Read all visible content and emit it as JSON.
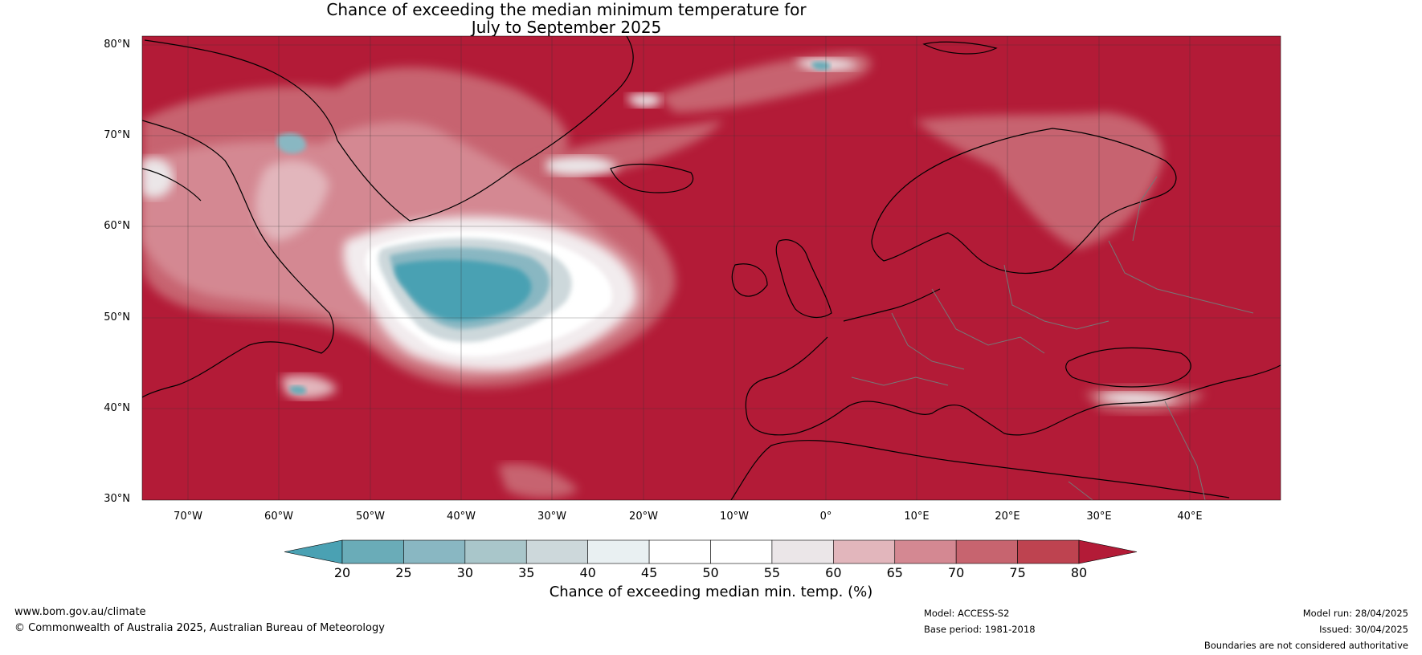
{
  "title": {
    "line1": "Chance of exceeding the median minimum temperature for",
    "line2": "July to September 2025"
  },
  "map": {
    "region": "North Atlantic and Europe",
    "lon_range": [
      -75,
      50
    ],
    "lat_range": [
      30,
      81
    ],
    "lat_labels": [
      "80°N",
      "70°N",
      "60°N",
      "50°N",
      "40°N",
      "30°N"
    ],
    "lon_labels": [
      "70°W",
      "60°W",
      "50°W",
      "40°W",
      "30°W",
      "20°W",
      "10°W",
      "0°",
      "10°E",
      "20°E",
      "30°E",
      "40°E"
    ],
    "dominant_color": "#b31b37"
  },
  "colorbar": {
    "ticks": [
      "20",
      "25",
      "30",
      "35",
      "40",
      "45",
      "50",
      "55",
      "60",
      "65",
      "70",
      "75",
      "80"
    ],
    "colors": [
      "#4aa1b3",
      "#6aacb8",
      "#89b7c2",
      "#a9c6ca",
      "#cdd8db",
      "#e9f0f2",
      "#ffffff",
      "#ffffff",
      "#ebe6e8",
      "#e2b6bc",
      "#d48892",
      "#c7646f",
      "#be4350"
    ],
    "low_extend_color": "#4aa1b3",
    "high_extend_color": "#b31b37",
    "label": "Chance of exceeding median min. temp. (%)"
  },
  "footer": {
    "website": "www.bom.gov.au/climate",
    "copyright": "© Commonwealth of Australia 2025, Australian Bureau of Meteorology",
    "model": "Model: ACCESS-S2",
    "base_period": "Base period: 1981-2018",
    "model_run": "Model run: 28/04/2025",
    "issued": "Issued: 30/04/2025",
    "disclaimer": "Boundaries are not considered authoritative"
  }
}
